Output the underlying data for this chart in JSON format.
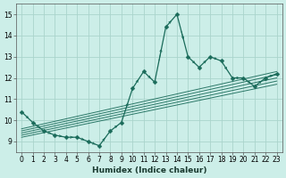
{
  "xlabel": "Humidex (Indice chaleur)",
  "bg_color": "#cceee8",
  "grid_color": "#aad4cc",
  "line_color": "#1a6b5a",
  "xlim": [
    -0.5,
    23.5
  ],
  "ylim": [
    8.5,
    15.5
  ],
  "xticks": [
    0,
    1,
    2,
    3,
    4,
    5,
    6,
    7,
    8,
    9,
    10,
    11,
    12,
    13,
    14,
    15,
    16,
    17,
    18,
    19,
    20,
    21,
    22,
    23
  ],
  "yticks": [
    9,
    10,
    11,
    12,
    13,
    14,
    15
  ],
  "x_data": [
    0,
    1,
    2,
    3,
    4,
    5,
    6,
    7,
    8,
    9,
    10,
    11,
    12,
    13,
    14,
    15,
    16,
    17,
    18,
    19,
    20,
    21,
    22,
    23
  ],
  "y_data": [
    10.4,
    9.9,
    9.5,
    9.3,
    9.2,
    9.2,
    9.0,
    8.8,
    9.5,
    9.9,
    11.5,
    12.3,
    11.8,
    14.4,
    15.0,
    13.0,
    12.5,
    13.0,
    12.8,
    12.0,
    12.0,
    11.6,
    12.0,
    12.2
  ],
  "trend_lines": [
    {
      "x0": 0,
      "y0": 9.6,
      "x1": 23,
      "y1": 12.3
    },
    {
      "x0": 0,
      "y0": 9.5,
      "x1": 23,
      "y1": 12.15
    },
    {
      "x0": 0,
      "y0": 9.4,
      "x1": 23,
      "y1": 12.0
    },
    {
      "x0": 0,
      "y0": 9.3,
      "x1": 23,
      "y1": 11.85
    },
    {
      "x0": 0,
      "y0": 9.2,
      "x1": 23,
      "y1": 11.7
    }
  ],
  "marker_size": 2.5,
  "line_width": 0.9,
  "axis_fontsize": 6.5,
  "tick_fontsize": 5.5
}
